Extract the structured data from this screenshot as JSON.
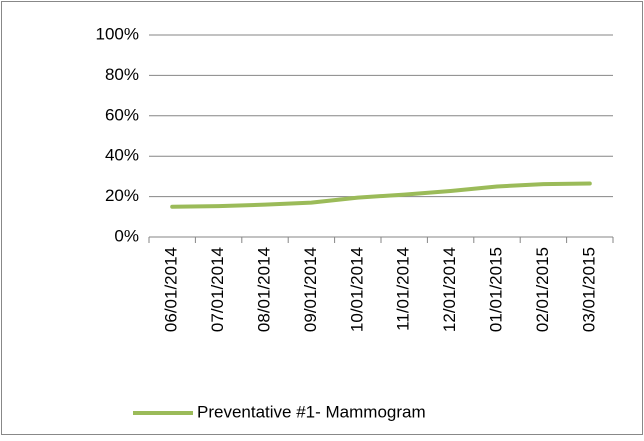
{
  "chart_data": {
    "type": "line",
    "categories": [
      "06/01/2014",
      "07/01/2014",
      "08/01/2014",
      "09/01/2014",
      "10/01/2014",
      "11/01/2014",
      "12/01/2014",
      "01/01/2015",
      "02/01/2015",
      "03/01/2015"
    ],
    "series": [
      {
        "name": "Preventative #1- Mammogram",
        "color": "#9bbb59",
        "values": [
          15,
          15.3,
          16,
          17,
          19.5,
          21,
          22.8,
          25,
          26.2,
          26.5
        ]
      }
    ],
    "ylim": [
      0,
      100
    ],
    "yticks": [
      {
        "value": 0,
        "label": "0%"
      },
      {
        "value": 20,
        "label": "20%"
      },
      {
        "value": 40,
        "label": "40%"
      },
      {
        "value": 60,
        "label": "60%"
      },
      {
        "value": 80,
        "label": "80%"
      },
      {
        "value": 100,
        "label": "100%"
      }
    ],
    "grid": true,
    "legend": "bottom"
  }
}
